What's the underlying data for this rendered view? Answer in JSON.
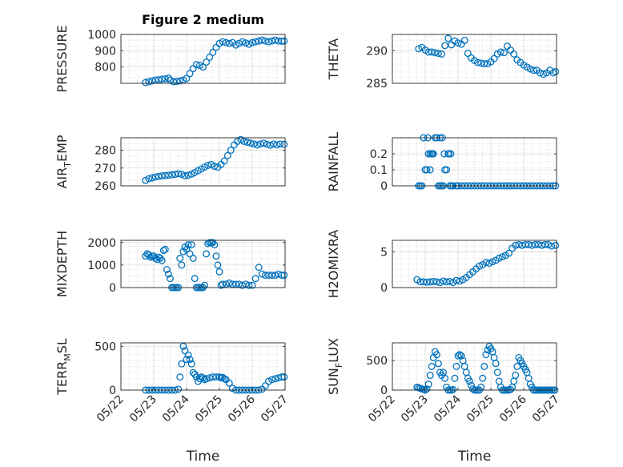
{
  "figure_title": "Figure 2 medium",
  "colors": {
    "marker": "#0072BD",
    "axis": "#262626",
    "grid": "#c8c8c8"
  },
  "chart_data": [
    {
      "id": "pressure",
      "type": "scatter",
      "title": "Figure 2 medium",
      "ylabel": "PRESSURE",
      "ylabel_main": "PRESSURE",
      "ylabel_sub": "",
      "ylabel_tail": "",
      "xlabel": "",
      "ylim": [
        700,
        1000
      ],
      "yticks": [
        800,
        900,
        1000
      ],
      "xlim": [
        0,
        5
      ],
      "xticks": [],
      "xticklabels": [],
      "x": [
        0.75,
        0.85,
        0.95,
        1.05,
        1.15,
        1.25,
        1.35,
        1.45,
        1.5,
        1.6,
        1.7,
        1.8,
        1.9,
        2,
        2.1,
        2.2,
        2.3,
        2.4,
        2.5,
        2.6,
        2.7,
        2.8,
        2.9,
        3,
        3.1,
        3.2,
        3.3,
        3.4,
        3.5,
        3.6,
        3.7,
        3.8,
        3.9,
        4,
        4.1,
        4.2,
        4.3,
        4.4,
        4.5,
        4.6,
        4.7,
        4.8,
        4.9,
        4.97
      ],
      "y": [
        705,
        710,
        715,
        720,
        722,
        725,
        728,
        732,
        720,
        710,
        712,
        715,
        720,
        730,
        760,
        790,
        815,
        810,
        800,
        830,
        860,
        890,
        920,
        945,
        955,
        950,
        945,
        950,
        935,
        945,
        955,
        948,
        940,
        950,
        955,
        960,
        965,
        960,
        955,
        960,
        965,
        960,
        958,
        960
      ]
    },
    {
      "id": "theta",
      "type": "scatter",
      "title": "",
      "ylabel": "THETA",
      "ylabel_main": "THETA",
      "ylabel_sub": "",
      "ylabel_tail": "",
      "xlabel": "",
      "ylim": [
        285,
        292.5
      ],
      "yticks": [
        285,
        290
      ],
      "xlim": [
        0,
        5
      ],
      "xticks": [],
      "xticklabels": [],
      "x": [
        0.8,
        0.9,
        1,
        1.1,
        1.2,
        1.3,
        1.4,
        1.5,
        1.6,
        1.7,
        1.8,
        1.9,
        2,
        2.1,
        2.2,
        2.3,
        2.4,
        2.5,
        2.6,
        2.7,
        2.8,
        2.9,
        3,
        3.1,
        3.2,
        3.3,
        3.4,
        3.5,
        3.6,
        3.7,
        3.8,
        3.9,
        4,
        4.1,
        4.2,
        4.3,
        4.4,
        4.5,
        4.6,
        4.7,
        4.8,
        4.9,
        4.97
      ],
      "y": [
        290.3,
        290.5,
        290.1,
        289.8,
        289.8,
        289.7,
        289.6,
        289.5,
        290.8,
        291.9,
        290.9,
        291.5,
        291.2,
        291,
        291.6,
        289.6,
        288.9,
        288.5,
        288.2,
        288.1,
        288,
        288,
        288.3,
        288.8,
        289.5,
        289.8,
        289.7,
        290.7,
        290.1,
        289.5,
        288.6,
        288.2,
        287.8,
        287.5,
        287.2,
        287,
        287,
        286.6,
        286.4,
        286.6,
        287,
        286.6,
        286.8
      ]
    },
    {
      "id": "air-temp",
      "type": "scatter",
      "title": "",
      "ylabel": "AIR_TEMP",
      "ylabel_main": "AIR",
      "ylabel_sub": "T",
      "ylabel_tail": "EMP",
      "xlabel": "",
      "ylim": [
        260,
        287
      ],
      "yticks": [
        260,
        270,
        280
      ],
      "xlim": [
        0,
        5
      ],
      "xticks": [],
      "xticklabels": [],
      "x": [
        0.75,
        0.85,
        0.95,
        1.05,
        1.15,
        1.25,
        1.35,
        1.45,
        1.55,
        1.65,
        1.75,
        1.85,
        1.95,
        2.05,
        2.15,
        2.25,
        2.35,
        2.45,
        2.55,
        2.65,
        2.75,
        2.85,
        2.95,
        3.05,
        3.15,
        3.25,
        3.35,
        3.45,
        3.55,
        3.65,
        3.75,
        3.85,
        3.95,
        4.05,
        4.15,
        4.25,
        4.35,
        4.45,
        4.55,
        4.65,
        4.75,
        4.85,
        4.97
      ],
      "y": [
        263,
        264,
        264.5,
        265,
        265.3,
        265.6,
        265.8,
        266,
        266.2,
        266.5,
        266.8,
        266.5,
        265.7,
        266,
        266.6,
        267.5,
        268.5,
        269.5,
        270.5,
        271.5,
        272,
        271,
        270.5,
        272,
        274,
        277,
        280,
        283,
        285,
        286,
        285,
        284.5,
        284,
        283.5,
        283,
        283.5,
        284,
        283.3,
        282.8,
        283.5,
        283,
        283.5,
        283.3
      ]
    },
    {
      "id": "rainfall",
      "type": "scatter",
      "title": "",
      "ylabel": "RAINFALL",
      "ylabel_main": "RAINFALL",
      "ylabel_sub": "",
      "ylabel_tail": "",
      "xlabel": "",
      "ylim": [
        0,
        0.3
      ],
      "yticks": [
        0,
        0.1,
        0.2
      ],
      "xlim": [
        0,
        5
      ],
      "xticks": [],
      "xticklabels": [],
      "x": [
        0.8,
        0.85,
        0.9,
        0.95,
        1,
        1.05,
        1.1,
        1.15,
        1.2,
        1.25,
        1.3,
        1.35,
        1.4,
        1.45,
        1.5,
        1.55,
        1.6,
        1.65,
        1.7,
        1.75,
        1.8,
        1.85,
        1.95,
        2,
        2.1,
        2.2,
        2.3,
        2.4,
        2.5,
        2.6,
        2.7,
        2.8,
        2.9,
        3,
        3.1,
        3.2,
        3.3,
        3.4,
        3.5,
        3.6,
        3.7,
        3.8,
        3.9,
        4,
        4.1,
        4.2,
        4.3,
        4.4,
        4.5,
        4.6,
        4.7,
        4.8,
        4.9,
        4.97,
        1.08,
        1.15,
        1.22,
        1.45,
        1.52,
        1.58,
        1.72,
        1.78
      ],
      "y": [
        0,
        0,
        0,
        0.3,
        0.1,
        0.1,
        0.2,
        0.2,
        0.2,
        0.2,
        0.3,
        0.3,
        0,
        0,
        0,
        0,
        0.1,
        0.1,
        0.2,
        0,
        0,
        0,
        0,
        0,
        0,
        0,
        0,
        0,
        0,
        0,
        0,
        0,
        0,
        0,
        0,
        0,
        0,
        0,
        0,
        0,
        0,
        0,
        0,
        0,
        0,
        0,
        0,
        0,
        0,
        0,
        0,
        0,
        0,
        0,
        0.3,
        0.1,
        0.2,
        0.3,
        0.3,
        0.2,
        0.2,
        0.2
      ]
    },
    {
      "id": "mixdepth",
      "type": "scatter",
      "title": "",
      "ylabel": "MIXDEPTH",
      "ylabel_main": "MIXDEPTH",
      "ylabel_sub": "",
      "ylabel_tail": "",
      "xlabel": "",
      "ylim": [
        0,
        2100
      ],
      "yticks": [
        0,
        1000,
        2000
      ],
      "xlim": [
        0,
        5
      ],
      "xticks": [],
      "xticklabels": [],
      "x": [
        0.75,
        0.8,
        0.85,
        0.9,
        0.95,
        1,
        1.05,
        1.1,
        1.15,
        1.2,
        1.25,
        1.3,
        1.35,
        1.4,
        1.45,
        1.5,
        1.55,
        1.6,
        1.65,
        1.7,
        1.75,
        1.8,
        1.85,
        1.9,
        1.95,
        2,
        2.05,
        2.1,
        2.15,
        2.2,
        2.25,
        2.3,
        2.35,
        2.4,
        2.45,
        2.5,
        2.55,
        2.6,
        2.65,
        2.7,
        2.75,
        2.8,
        2.85,
        2.9,
        2.95,
        3,
        3.05,
        3.1,
        3.2,
        3.3,
        3.4,
        3.5,
        3.6,
        3.7,
        3.8,
        3.9,
        4,
        4.1,
        4.2,
        4.3,
        4.4,
        4.5,
        4.6,
        4.7,
        4.8,
        4.9,
        4.97
      ],
      "y": [
        1400,
        1500,
        1450,
        1350,
        1400,
        1400,
        1300,
        1250,
        1350,
        1300,
        1200,
        1650,
        1700,
        800,
        600,
        400,
        0,
        0,
        0,
        0,
        0,
        1300,
        1000,
        1600,
        1800,
        1700,
        1900,
        1500,
        1900,
        1300,
        400,
        0,
        0,
        0,
        0,
        0,
        100,
        1500,
        1950,
        2000,
        2000,
        2000,
        1900,
        1400,
        1000,
        700,
        100,
        150,
        150,
        200,
        150,
        150,
        150,
        100,
        150,
        100,
        100,
        400,
        900,
        600,
        550,
        550,
        550,
        550,
        600,
        550,
        550
      ]
    },
    {
      "id": "h2omixra",
      "type": "scatter",
      "title": "",
      "ylabel": "H2OMIXRA",
      "ylabel_main": "H2OMIXRA",
      "ylabel_sub": "",
      "ylabel_tail": "",
      "xlabel": "",
      "ylim": [
        0,
        6.6
      ],
      "yticks": [
        0,
        5
      ],
      "xlim": [
        0,
        5
      ],
      "xticks": [],
      "xticklabels": [],
      "x": [
        0.75,
        0.85,
        0.95,
        1.05,
        1.15,
        1.25,
        1.35,
        1.45,
        1.55,
        1.65,
        1.75,
        1.85,
        1.95,
        2.05,
        2.15,
        2.25,
        2.35,
        2.45,
        2.55,
        2.65,
        2.75,
        2.85,
        2.95,
        3.05,
        3.15,
        3.25,
        3.35,
        3.45,
        3.55,
        3.65,
        3.75,
        3.85,
        3.95,
        4.05,
        4.15,
        4.25,
        4.35,
        4.45,
        4.55,
        4.65,
        4.75,
        4.85,
        4.97
      ],
      "y": [
        1.1,
        0.8,
        0.8,
        0.75,
        0.8,
        0.85,
        0.8,
        0.7,
        0.9,
        0.8,
        0.85,
        0.7,
        1,
        0.9,
        1.1,
        1.4,
        1.8,
        2.2,
        2.6,
        3,
        3.2,
        3.5,
        3.4,
        3.6,
        3.8,
        4.1,
        4.3,
        4.5,
        4.8,
        5.5,
        5.9,
        6,
        5.9,
        6,
        6,
        5.9,
        6,
        6,
        5.9,
        6,
        6,
        5.8,
        5.9
      ]
    },
    {
      "id": "terr-msl",
      "type": "scatter",
      "title": "",
      "ylabel": "TERR_MSL",
      "ylabel_main": "TERR",
      "ylabel_sub": "M",
      "ylabel_tail": "SL",
      "xlabel": "Time",
      "ylim": [
        0,
        540
      ],
      "yticks": [
        0,
        500
      ],
      "xlim": [
        0,
        5
      ],
      "xticks": [
        0,
        1,
        2,
        3,
        4,
        5
      ],
      "xticklabels": [
        "05/22",
        "05/23",
        "05/24",
        "05/25",
        "05/26",
        "05/27"
      ],
      "x": [
        0.75,
        0.85,
        0.95,
        1.05,
        1.15,
        1.25,
        1.35,
        1.45,
        1.55,
        1.65,
        1.75,
        1.8,
        1.85,
        1.9,
        1.95,
        2,
        2.05,
        2.1,
        2.15,
        2.2,
        2.25,
        2.3,
        2.35,
        2.4,
        2.45,
        2.5,
        2.55,
        2.6,
        2.7,
        2.8,
        2.9,
        3,
        3.05,
        3.1,
        3.15,
        3.2,
        3.3,
        3.4,
        3.5,
        3.6,
        3.7,
        3.8,
        3.9,
        4,
        4.1,
        4.2,
        4.3,
        4.4,
        4.5,
        4.6,
        4.7,
        4.8,
        4.9,
        4.97
      ],
      "y": [
        0,
        0,
        0,
        0,
        0,
        0,
        0,
        0,
        0,
        0,
        10,
        150,
        300,
        500,
        450,
        350,
        400,
        350,
        300,
        200,
        180,
        150,
        100,
        130,
        150,
        140,
        120,
        130,
        140,
        150,
        150,
        150,
        140,
        145,
        130,
        120,
        80,
        20,
        0,
        0,
        0,
        0,
        0,
        0,
        0,
        0,
        10,
        50,
        100,
        120,
        130,
        140,
        150,
        150
      ]
    },
    {
      "id": "sun-flux",
      "type": "scatter",
      "title": "",
      "ylabel": "SUN_FLUX",
      "ylabel_main": "SUN",
      "ylabel_sub": "F",
      "ylabel_tail": "LUX",
      "xlabel": "Time",
      "ylim": [
        0,
        800
      ],
      "yticks": [
        0,
        500
      ],
      "xlim": [
        0,
        5
      ],
      "xticks": [
        0,
        1,
        2,
        3,
        4,
        5
      ],
      "xticklabels": [
        "05/22",
        "05/23",
        "05/24",
        "05/25",
        "05/26",
        "05/27"
      ],
      "x": [
        0.75,
        0.8,
        0.85,
        0.9,
        0.95,
        1,
        1.05,
        1.1,
        1.15,
        1.2,
        1.25,
        1.3,
        1.35,
        1.4,
        1.45,
        1.5,
        1.55,
        1.6,
        1.65,
        1.7,
        1.75,
        1.8,
        1.85,
        1.9,
        1.95,
        2,
        2.05,
        2.1,
        2.15,
        2.2,
        2.25,
        2.3,
        2.35,
        2.4,
        2.45,
        2.5,
        2.55,
        2.6,
        2.65,
        2.7,
        2.75,
        2.8,
        2.85,
        2.9,
        2.95,
        3,
        3.05,
        3.1,
        3.15,
        3.2,
        3.25,
        3.3,
        3.35,
        3.4,
        3.45,
        3.5,
        3.55,
        3.6,
        3.65,
        3.7,
        3.75,
        3.8,
        3.85,
        3.9,
        3.95,
        4,
        4.05,
        4.1,
        4.15,
        4.2,
        4.25,
        4.3,
        4.35,
        4.4,
        4.45,
        4.5,
        4.55,
        4.6,
        4.65,
        4.7,
        4.75,
        4.8,
        4.85,
        4.9,
        4.95
      ],
      "y": [
        50,
        40,
        30,
        20,
        10,
        0,
        20,
        100,
        250,
        400,
        550,
        650,
        600,
        450,
        300,
        250,
        300,
        200,
        50,
        0,
        0,
        0,
        10,
        200,
        400,
        580,
        600,
        580,
        500,
        400,
        300,
        200,
        150,
        80,
        20,
        0,
        0,
        0,
        0,
        50,
        200,
        400,
        600,
        680,
        740,
        700,
        650,
        550,
        450,
        300,
        150,
        50,
        0,
        0,
        0,
        0,
        0,
        10,
        50,
        150,
        250,
        400,
        550,
        500,
        450,
        400,
        350,
        300,
        200,
        100,
        50,
        0,
        0,
        0,
        0,
        0,
        0,
        0,
        0,
        0,
        0,
        0,
        0,
        0,
        0
      ]
    }
  ]
}
